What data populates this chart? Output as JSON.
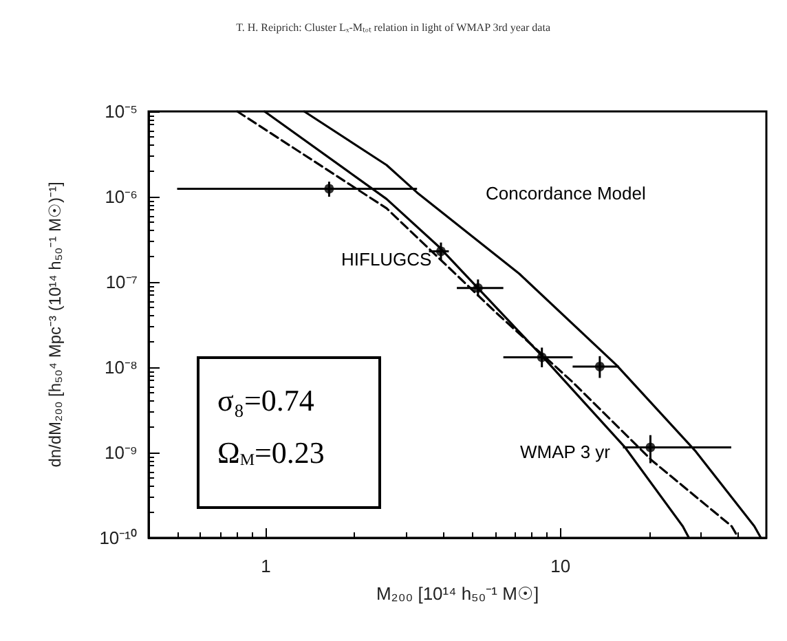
{
  "chart_data": {
    "type": "line",
    "title": "T. H. Reiprich: Cluster Lₓ-Mₜₒₜ relation in light of WMAP 3rd year data",
    "xlabel": "M₂₀₀ [10¹⁴ h₅₀⁻¹ M☉]",
    "ylabel": "dn/dM₂₀₀ [h₅₀⁴ Mpc⁻³ (10¹⁴ h₅₀⁻¹ M☉)⁻¹]",
    "log": "xy",
    "xlim": [
      0.4,
      50
    ],
    "ylim": [
      1e-10,
      1e-05
    ],
    "xticks": [
      1,
      10
    ],
    "yticks": [
      {
        "value": 1e-10,
        "label": "10⁻¹⁰"
      },
      {
        "value": 1e-09,
        "label": "10⁻⁹"
      },
      {
        "value": 1e-08,
        "label": "10⁻⁸"
      },
      {
        "value": 1e-07,
        "label": "10⁻⁷"
      },
      {
        "value": 1e-06,
        "label": "10⁻⁶"
      },
      {
        "value": 1e-05,
        "label": "10⁻⁵"
      }
    ],
    "grid": false,
    "annotations": [
      "σ₈=0.74",
      "Ω$_{M}$=0.23"
    ],
    "series": [
      {
        "name": "Concordance Model",
        "color": "#000000",
        "line_style": "solid",
        "marker": "none",
        "x": [
          1.35,
          2.57,
          3.26,
          7.25,
          15.5,
          28.8,
          45.5,
          47.9
        ],
        "values": [
          1e-05,
          2.35e-06,
          1.12e-06,
          1.25e-07,
          1.06e-08,
          1.03e-09,
          1.37e-10,
          1e-10
        ]
      },
      {
        "color": "#000000",
        "line_style": "dashed",
        "marker": "none",
        "x": [
          0.8,
          2.57,
          6.08,
          11.0,
          20.5,
          38.1,
          40.2
        ],
        "values": [
          1e-05,
          7.3e-07,
          4.3e-08,
          6.7e-09,
          8e-10,
          1.37e-10,
          1e-10
        ]
      },
      {
        "name": "WMAP 3 yr",
        "color": "#000000",
        "line_style": "solid",
        "marker": "none",
        "x": [
          0.99,
          2.57,
          3.89,
          8.65,
          16.6,
          26,
          27.3
        ],
        "values": [
          1e-05,
          9.4e-07,
          2.54e-07,
          1.36e-08,
          1.14e-09,
          1.37e-10,
          1e-10
        ]
      },
      {
        "name": "HIFLUGCS",
        "type": "scatter",
        "color": "#000000",
        "marker": "circle",
        "x": [
          1.64,
          3.93,
          5.25,
          8.65,
          13.6,
          20.2
        ],
        "values": [
          1.24e-06,
          2.29e-07,
          8.5e-08,
          1.31e-08,
          1.02e-08,
          1.15e-09
        ],
        "errors": [
          [
            1e-06,
            1.5e-06
          ],
          [
            1.8e-07,
            2.9e-07
          ],
          [
            6.8e-08,
            1.07e-07
          ],
          [
            1e-08,
            1.7e-08
          ],
          [
            7.5e-09,
            1.35e-08
          ],
          [
            7.5e-10,
            1.6e-09
          ]
        ],
        "xerrors": [
          [
            0.5,
            3.26
          ],
          [
            3.58,
            4.18
          ],
          [
            4.45,
            6.4
          ],
          [
            6.4,
            11.0
          ],
          [
            11.0,
            15.8
          ],
          [
            16.3,
            38
          ]
        ]
      }
    ]
  }
}
